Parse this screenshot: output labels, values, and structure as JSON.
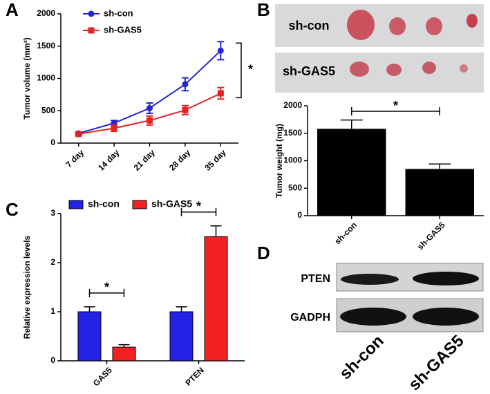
{
  "panel_labels": [
    "A",
    "B",
    "C",
    "D"
  ],
  "photo": {
    "row_labels": [
      "sh-con",
      "sh-GAS5"
    ]
  },
  "blot": {
    "bands": [
      "PTEN",
      "GADPH"
    ],
    "lanes": [
      "sh-con",
      "sh-GAS5"
    ]
  },
  "chart_data": [
    {
      "type": "line",
      "y_label": "Tumor volume (mm³)",
      "categories": [
        "7 day",
        "14 day",
        "21 day",
        "28 day",
        "35 day"
      ],
      "series": [
        {
          "name": "sh-con",
          "color": "#2323d8",
          "marker": "circle",
          "values": [
            150,
            310,
            540,
            910,
            1430
          ],
          "errors": [
            15,
            40,
            80,
            100,
            140
          ]
        },
        {
          "name": "sh-GAS5",
          "color": "#e52222",
          "marker": "square",
          "values": [
            140,
            230,
            350,
            510,
            770
          ],
          "errors": [
            20,
            50,
            70,
            70,
            90
          ]
        }
      ],
      "ylim": [
        0,
        2000
      ],
      "yticks": [
        0,
        500,
        1000,
        1500,
        2000
      ],
      "annotations": [
        "*"
      ]
    },
    {
      "type": "bar",
      "y_label": "Tumor weight (mg)",
      "categories": [
        "sh-con",
        "sh-GAS5"
      ],
      "values": [
        1580,
        850
      ],
      "errors": [
        160,
        90
      ],
      "color": "#000000",
      "ylim": [
        0,
        2000
      ],
      "yticks": [
        0,
        500,
        1000,
        1500,
        2000
      ],
      "annotations": [
        "*"
      ]
    },
    {
      "type": "grouped_bar",
      "y_label": "Relative expression levels",
      "categories": [
        "GAS5",
        "PTEN"
      ],
      "series": [
        {
          "name": "sh-con",
          "color": "#2323e6",
          "values": [
            1.0,
            1.0
          ],
          "errors": [
            0.1,
            0.1
          ]
        },
        {
          "name": "sh-GAS5",
          "color": "#f22222",
          "values": [
            0.28,
            2.53
          ],
          "errors": [
            0.05,
            0.22
          ]
        }
      ],
      "ylim": [
        0,
        3
      ],
      "yticks": [
        0,
        1,
        2,
        3
      ],
      "annotations": [
        "*",
        "*"
      ]
    }
  ]
}
